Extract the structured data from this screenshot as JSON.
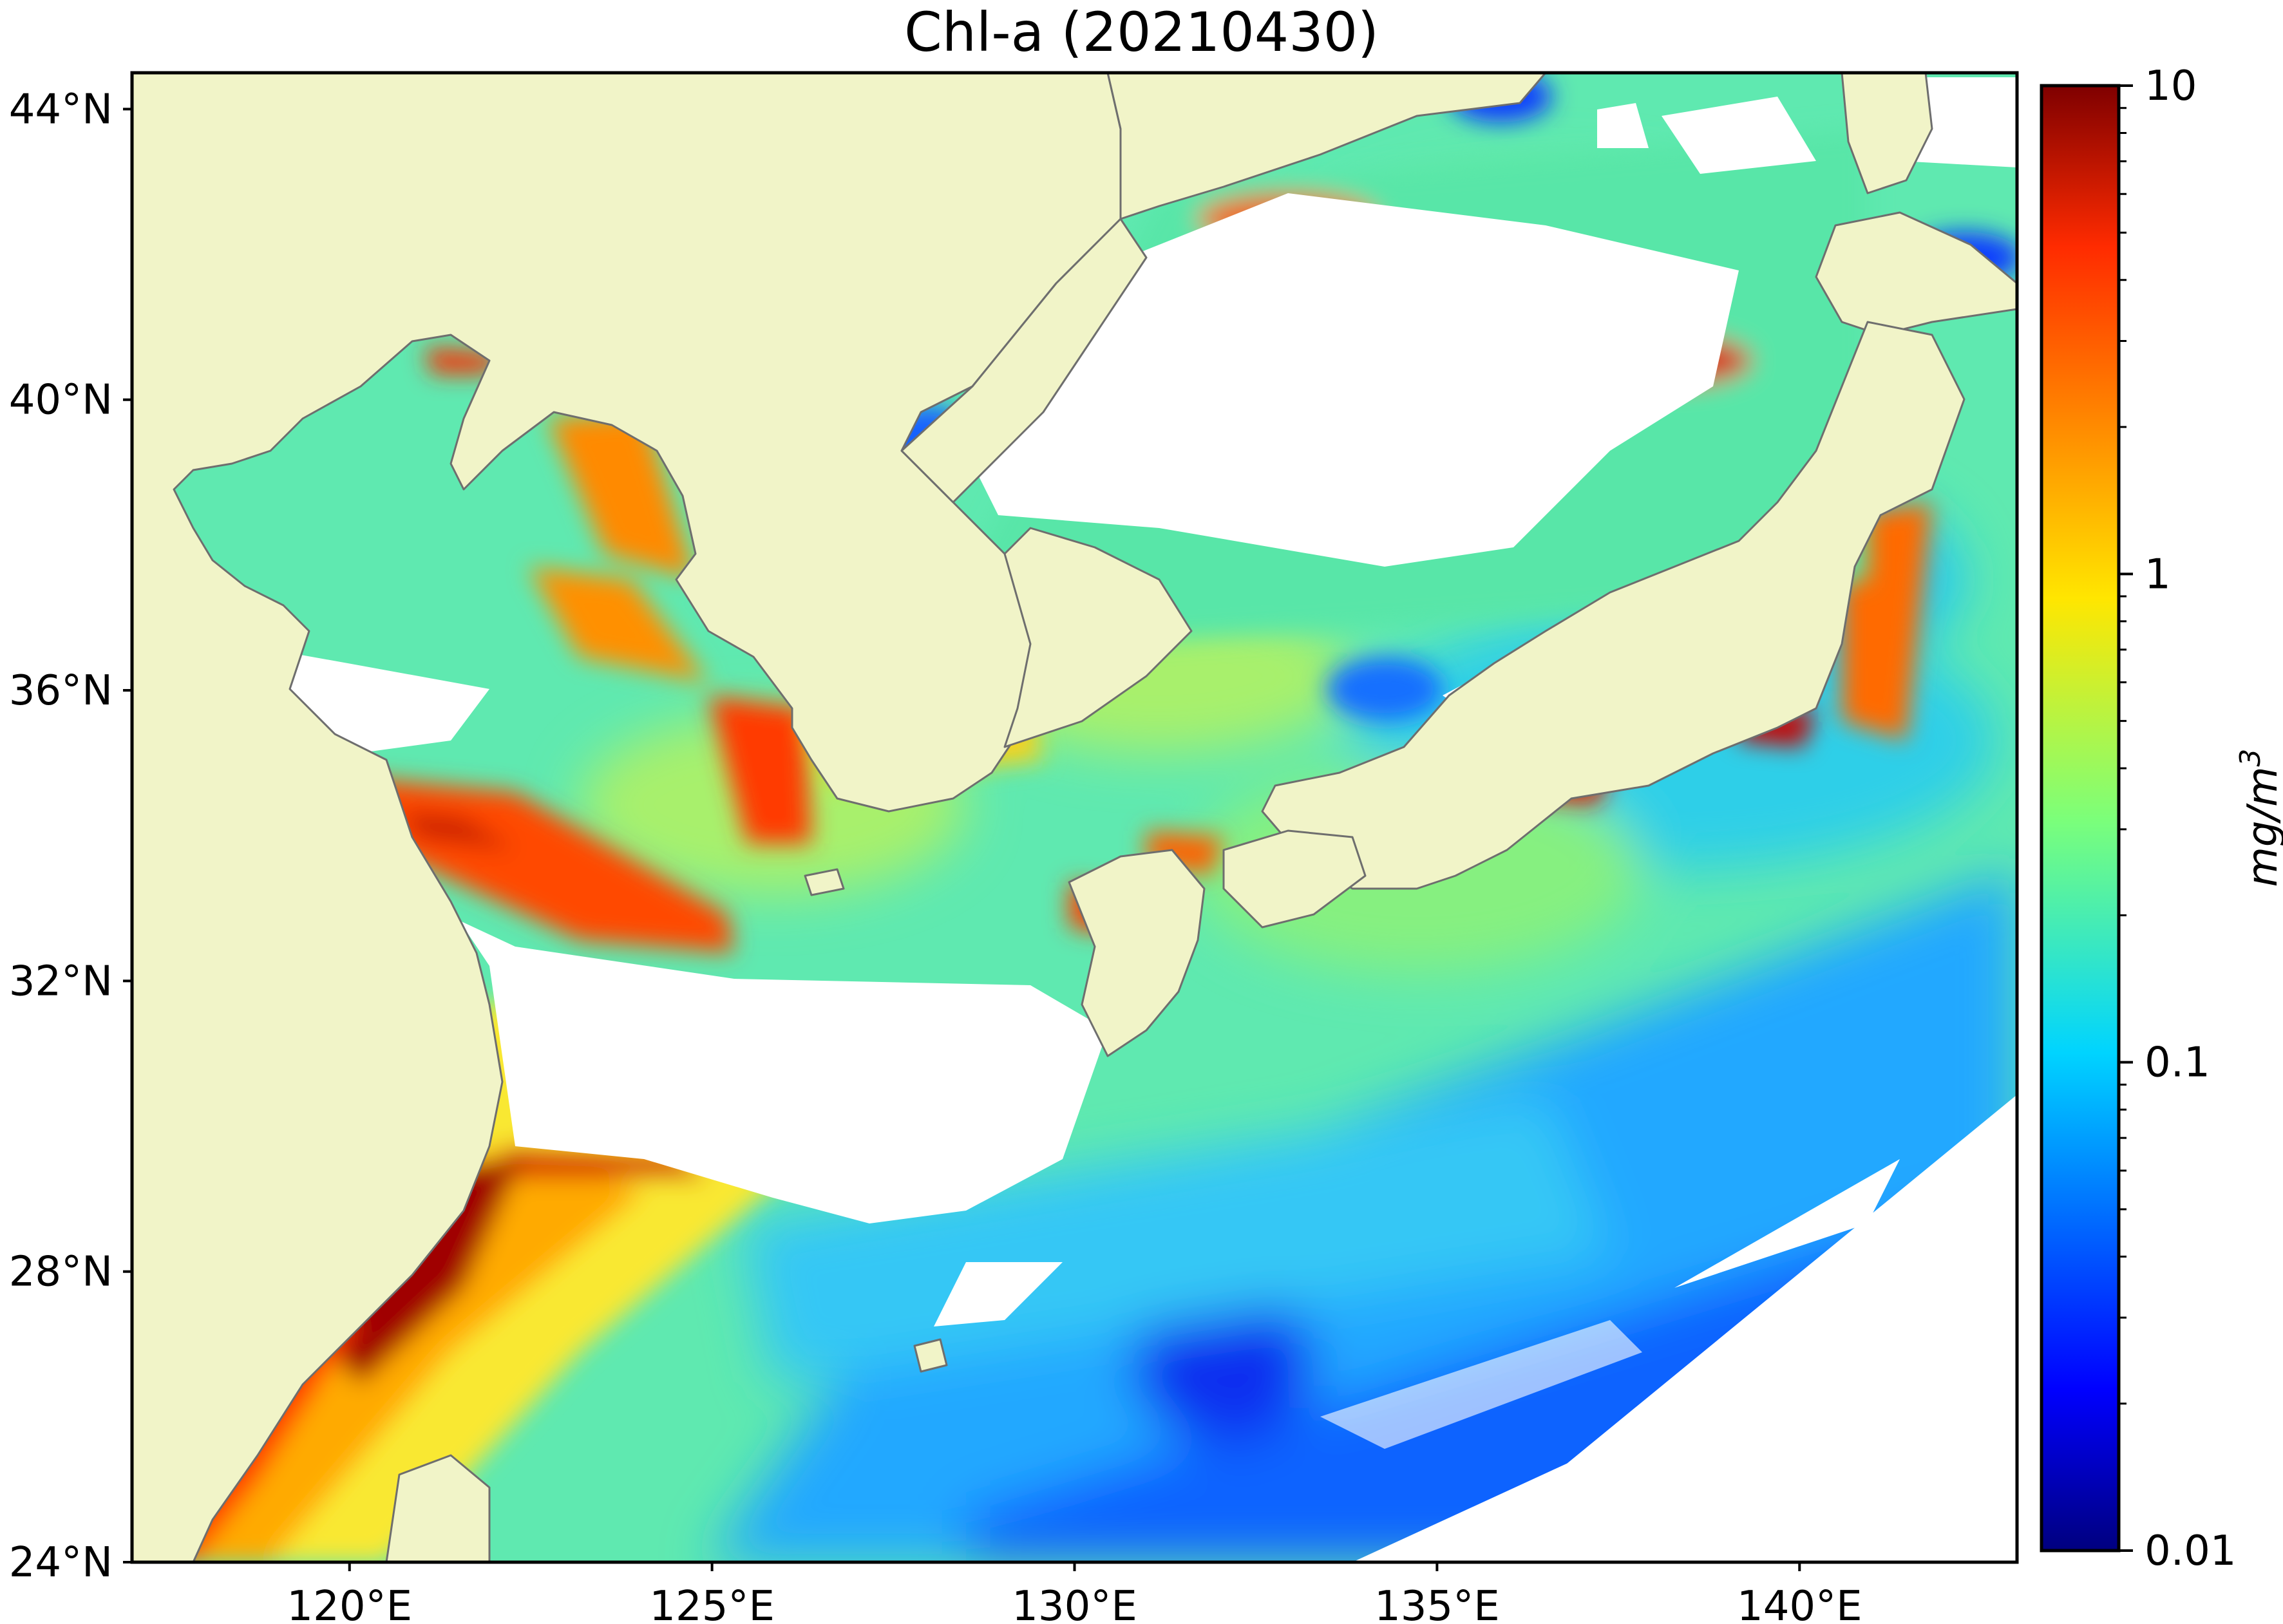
{
  "title": "Chl-a (20210430)",
  "map": {
    "lon_range": [
      117.0,
      143.0
    ],
    "lat_range": [
      24.0,
      44.5
    ],
    "lat_ticks": [
      {
        "value": 44,
        "label": "44°N"
      },
      {
        "value": 40,
        "label": "40°N"
      },
      {
        "value": 36,
        "label": "36°N"
      },
      {
        "value": 32,
        "label": "32°N"
      },
      {
        "value": 28,
        "label": "28°N"
      },
      {
        "value": 24,
        "label": "24°N"
      }
    ],
    "lon_ticks": [
      {
        "value": 120,
        "label": "120°E"
      },
      {
        "value": 125,
        "label": "125°E"
      },
      {
        "value": 130,
        "label": "130°E"
      },
      {
        "value": 135,
        "label": "135°E"
      },
      {
        "value": 140,
        "label": "140°E"
      }
    ],
    "colors": {
      "land": "#f1f4c8",
      "cloud_nodata": "#ffffff",
      "coastline": "#6e6e6e"
    }
  },
  "colorbar": {
    "scale": "log",
    "min": 0.01,
    "max": 10,
    "ticks": [
      {
        "value": 10,
        "label": "10"
      },
      {
        "value": 1,
        "label": "1"
      },
      {
        "value": 0.1,
        "label": "0.1"
      },
      {
        "value": 0.01,
        "label": "0.01"
      }
    ],
    "unit_label": "mg/m",
    "unit_superscript": "3",
    "colormap": "jet"
  }
}
